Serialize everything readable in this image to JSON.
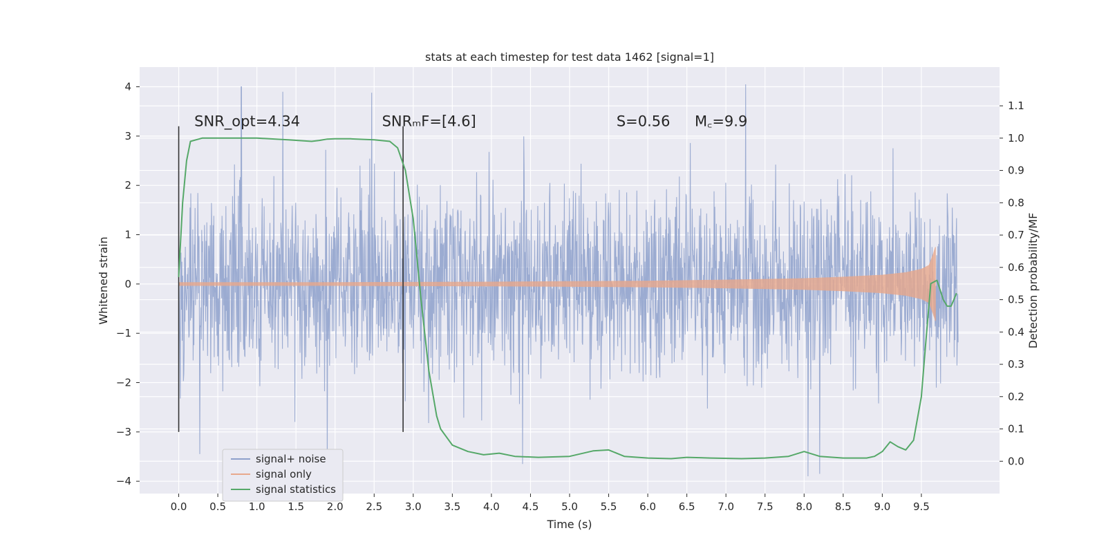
{
  "chart_data": {
    "type": "line",
    "title": "stats at each timestep for test data 1462 [signal=1]",
    "xlabel": "Time (s)",
    "ylabel": "Whitened strain",
    "y2label": "Detection probability/MF",
    "xlim": [
      -0.5,
      10.5
    ],
    "ylim": [
      -4.25,
      4.4
    ],
    "y2lim": [
      -0.1,
      1.22
    ],
    "x_ticks": [
      "0.0",
      "0.5",
      "1.0",
      "1.5",
      "2.0",
      "2.5",
      "3.0",
      "3.5",
      "4.0",
      "4.5",
      "5.0",
      "5.5",
      "6.0",
      "6.5",
      "7.0",
      "7.5",
      "8.0",
      "8.5",
      "9.0",
      "9.5"
    ],
    "y_ticks": [
      "4",
      "3",
      "2",
      "1",
      "0",
      "−1",
      "−2",
      "−3",
      "−4"
    ],
    "y2_ticks": [
      "1.1",
      "1.0",
      "0.9",
      "0.8",
      "0.7",
      "0.6",
      "0.5",
      "0.4",
      "0.3",
      "0.2",
      "0.1",
      "0.0"
    ],
    "grid": true,
    "legend_position": "bottom-left",
    "annotations": [
      {
        "text": "SNR_opt=4.34",
        "x": 0.2,
        "y": 3.2
      },
      {
        "text": "SNRₘF=[4.6]",
        "x": 2.6,
        "y": 3.2
      },
      {
        "text": "S=0.56",
        "x": 5.6,
        "y": 3.2
      },
      {
        "text": "M꜀=9.9",
        "x": 6.6,
        "y": 3.2
      }
    ],
    "vertical_markers": [
      {
        "x": 0.0,
        "ymin": -3.0,
        "ymax": 3.2
      },
      {
        "x": 2.87,
        "ymin": -3.0,
        "ymax": 3.2
      }
    ],
    "series": [
      {
        "name": "signal+ noise",
        "color": "#8da0cb",
        "axis": "left",
        "description": "noisy whitened strain, dense band of std ~1 with spikes",
        "envelope_peaks": [
          {
            "x": 0.8,
            "y": 4.0
          },
          {
            "x": 1.33,
            "y": 3.9
          },
          {
            "x": 2.47,
            "y": 3.88
          },
          {
            "x": 7.25,
            "y": 4.05
          },
          {
            "x": 0.27,
            "y": -3.45
          },
          {
            "x": 1.9,
            "y": -3.8
          },
          {
            "x": 4.4,
            "y": -3.65
          },
          {
            "x": 8.05,
            "y": -3.9
          },
          {
            "x": 8.2,
            "y": -3.85
          }
        ]
      },
      {
        "name": "signal only",
        "color": "#e8a88c",
        "axis": "left",
        "description": "chirp amplitude envelope growing toward merger",
        "x": [
          0.0,
          2.0,
          4.0,
          5.0,
          6.0,
          7.0,
          8.0,
          8.5,
          9.0,
          9.3,
          9.5,
          9.6,
          9.65,
          9.68
        ],
        "envelope": [
          0.03,
          0.03,
          0.04,
          0.05,
          0.06,
          0.08,
          0.11,
          0.14,
          0.18,
          0.23,
          0.3,
          0.38,
          0.6,
          0.75
        ]
      },
      {
        "name": "signal statistics",
        "color": "#55a868",
        "axis": "right",
        "x": [
          0.0,
          0.05,
          0.1,
          0.15,
          0.3,
          0.6,
          1.0,
          1.4,
          1.7,
          1.8,
          1.9,
          2.0,
          2.2,
          2.5,
          2.7,
          2.8,
          2.9,
          3.0,
          3.1,
          3.2,
          3.3,
          3.35,
          3.5,
          3.7,
          3.9,
          4.1,
          4.3,
          4.6,
          5.0,
          5.3,
          5.5,
          5.7,
          6.0,
          6.3,
          6.5,
          6.8,
          7.2,
          7.5,
          7.8,
          8.0,
          8.2,
          8.5,
          8.8,
          8.9,
          9.0,
          9.1,
          9.2,
          9.3,
          9.4,
          9.5,
          9.55,
          9.62,
          9.7,
          9.78,
          9.83,
          9.88,
          9.95
        ],
        "values": [
          0.57,
          0.8,
          0.93,
          0.99,
          1.0,
          1.0,
          1.0,
          0.995,
          0.99,
          0.993,
          0.997,
          0.998,
          0.998,
          0.995,
          0.99,
          0.97,
          0.9,
          0.75,
          0.5,
          0.28,
          0.14,
          0.1,
          0.05,
          0.03,
          0.02,
          0.025,
          0.015,
          0.012,
          0.015,
          0.032,
          0.035,
          0.015,
          0.01,
          0.008,
          0.012,
          0.01,
          0.008,
          0.01,
          0.015,
          0.03,
          0.015,
          0.01,
          0.01,
          0.015,
          0.03,
          0.06,
          0.045,
          0.035,
          0.065,
          0.2,
          0.35,
          0.55,
          0.56,
          0.5,
          0.48,
          0.48,
          0.52
        ]
      }
    ]
  }
}
